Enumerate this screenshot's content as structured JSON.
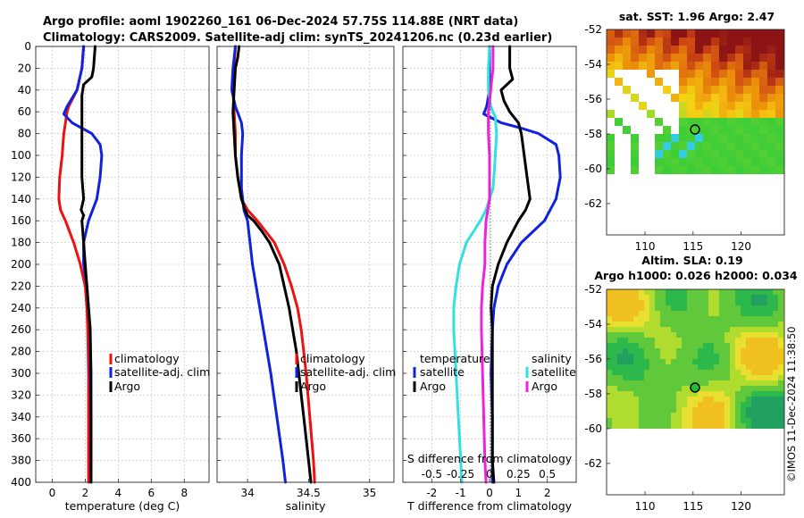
{
  "title_line1": "Argo profile: aoml 1902260_161 06-Dec-2024 57.75S 114.88E (NRT data)",
  "title_line2": "Climatology: CARS2009. Satellite-adj clim: synTS_20241206.nc (0.23d earlier)",
  "colors": {
    "climatology": "#ee1111",
    "satellite": "#1122dd",
    "argo": "#000000",
    "salinity_sat": "#33e0e0",
    "salinity_argo": "#ee22dd"
  },
  "depth_ticks": [
    "0",
    "20",
    "40",
    "60",
    "80",
    "100",
    "120",
    "140",
    "160",
    "180",
    "200",
    "220",
    "240",
    "260",
    "280",
    "300",
    "320",
    "340",
    "360",
    "380",
    "400"
  ],
  "copyright": "©IMOS 11-Dec-2024 11:38:50",
  "chart_data": [
    {
      "type": "line",
      "name": "temperature",
      "xlabel": "temperature (deg C)",
      "ylabel": "depth",
      "xlim": [
        -1,
        9.5
      ],
      "ylim": [
        400,
        0
      ],
      "x_ticks": [
        "0",
        "2",
        "4",
        "6",
        "8"
      ],
      "legend": [
        "climatology",
        "satellite-adj. clim",
        "Argo"
      ],
      "series": [
        {
          "name": "climatology",
          "depth": [
            0,
            20,
            40,
            55,
            60,
            70,
            80,
            100,
            120,
            140,
            150,
            160,
            180,
            200,
            220,
            240,
            260,
            300,
            340,
            380,
            400
          ],
          "values": [
            1.9,
            1.8,
            1.5,
            1.0,
            0.9,
            0.8,
            0.7,
            0.6,
            0.45,
            0.4,
            0.5,
            0.8,
            1.3,
            1.7,
            2.0,
            2.1,
            2.15,
            2.2,
            2.2,
            2.2,
            2.2
          ]
        },
        {
          "name": "satellite-adj. clim",
          "depth": [
            0,
            20,
            40,
            55,
            62,
            70,
            75,
            80,
            90,
            100,
            120,
            140,
            160,
            180,
            200,
            220,
            240,
            260,
            300,
            340,
            380,
            400
          ],
          "values": [
            1.9,
            1.8,
            1.5,
            0.9,
            0.7,
            1.2,
            1.8,
            2.4,
            2.9,
            3.0,
            2.9,
            2.7,
            2.2,
            1.9,
            1.9,
            2.1,
            2.2,
            2.3,
            2.3,
            2.35,
            2.35,
            2.35
          ]
        },
        {
          "name": "Argo",
          "depth": [
            0,
            20,
            28,
            35,
            45,
            60,
            80,
            100,
            120,
            140,
            150,
            155,
            160,
            180,
            200,
            220,
            240,
            260,
            300,
            340,
            380,
            400
          ],
          "values": [
            2.6,
            2.5,
            2.4,
            1.9,
            1.8,
            1.8,
            1.8,
            1.8,
            1.8,
            1.9,
            1.75,
            1.9,
            1.8,
            1.9,
            2.0,
            2.1,
            2.2,
            2.3,
            2.35,
            2.35,
            2.35,
            2.35
          ]
        }
      ]
    },
    {
      "type": "line",
      "name": "salinity",
      "xlabel": "salinity",
      "ylabel": "depth",
      "xlim": [
        33.75,
        35.2
      ],
      "ylim": [
        400,
        0
      ],
      "x_ticks": [
        "34",
        "34.5",
        "35"
      ],
      "legend": [
        "climatology",
        "satellite-adj. clim",
        "Argo"
      ],
      "series": [
        {
          "name": "climatology",
          "depth": [
            0,
            20,
            40,
            60,
            80,
            100,
            120,
            140,
            150,
            160,
            180,
            200,
            220,
            240,
            260,
            280,
            300,
            340,
            380,
            400
          ],
          "values": [
            33.9,
            33.89,
            33.88,
            33.89,
            33.9,
            33.9,
            33.92,
            33.95,
            34.0,
            34.08,
            34.22,
            34.3,
            34.36,
            34.41,
            34.44,
            34.46,
            34.48,
            34.51,
            34.54,
            34.55
          ]
        },
        {
          "name": "satellite-adj. clim",
          "depth": [
            0,
            20,
            40,
            55,
            70,
            80,
            100,
            130,
            150,
            160,
            180,
            200,
            220,
            240,
            260,
            280,
            300,
            340,
            380,
            400
          ],
          "values": [
            33.9,
            33.88,
            33.87,
            33.9,
            33.95,
            33.96,
            33.95,
            33.95,
            33.97,
            34.0,
            34.02,
            34.04,
            34.07,
            34.1,
            34.13,
            34.16,
            34.19,
            34.24,
            34.29,
            34.31
          ]
        },
        {
          "name": "Argo",
          "depth": [
            0,
            10,
            20,
            40,
            60,
            80,
            100,
            120,
            140,
            150,
            155,
            160,
            170,
            180,
            200,
            220,
            240,
            260,
            280,
            300,
            320,
            340,
            380,
            400
          ],
          "values": [
            33.93,
            33.92,
            33.9,
            33.89,
            33.88,
            33.89,
            33.9,
            33.92,
            33.95,
            33.98,
            34.0,
            34.05,
            34.12,
            34.18,
            34.26,
            34.3,
            34.34,
            34.37,
            34.4,
            34.42,
            34.44,
            34.46,
            34.5,
            34.52
          ]
        }
      ]
    },
    {
      "type": "line",
      "name": "difference from climatology",
      "xlabel": "T difference from climatology",
      "xlabel_top": "S difference from climatology",
      "ylabel": "depth",
      "xlim": [
        -3,
        3
      ],
      "ylim": [
        400,
        0
      ],
      "x_ticks": [
        "-2",
        "-1",
        "0",
        "1",
        "2"
      ],
      "s_ticks": [
        "-0.5",
        "-0.25",
        "0",
        "0.25",
        "0.5"
      ],
      "legend_temperature_title": "temperature",
      "legend_salinity_title": "salinity",
      "legend_temperature": [
        "satellite",
        "Argo"
      ],
      "legend_salinity": [
        "satellite",
        "Argo"
      ],
      "series": [
        {
          "name": "temperature satellite",
          "depth": [
            0,
            20,
            40,
            55,
            62,
            70,
            75,
            80,
            90,
            100,
            120,
            140,
            160,
            180,
            200,
            220,
            240,
            260,
            300,
            340,
            380,
            400
          ],
          "values": [
            0.0,
            0.0,
            0.0,
            -0.1,
            -0.2,
            0.4,
            1.1,
            1.7,
            2.3,
            2.4,
            2.45,
            2.3,
            1.9,
            1.1,
            0.6,
            0.3,
            0.15,
            0.1,
            0.05,
            0.1,
            0.1,
            0.1
          ]
        },
        {
          "name": "temperature Argo",
          "depth": [
            0,
            20,
            30,
            40,
            50,
            60,
            70,
            80,
            100,
            120,
            140,
            150,
            160,
            180,
            200,
            220,
            240,
            260,
            300,
            340,
            380,
            400
          ],
          "values": [
            0.7,
            0.7,
            0.8,
            0.4,
            0.5,
            0.7,
            1.0,
            1.1,
            1.2,
            1.3,
            1.4,
            1.25,
            1.0,
            0.6,
            0.3,
            0.1,
            0.05,
            0.1,
            0.1,
            0.1,
            0.1,
            0.15
          ]
        },
        {
          "name": "salinity satellite",
          "depth": [
            0,
            20,
            40,
            55,
            65,
            80,
            100,
            130,
            150,
            160,
            180,
            200,
            220,
            240,
            260,
            280,
            300,
            340,
            380,
            400
          ],
          "values": [
            0.0,
            -0.01,
            -0.01,
            0.01,
            0.05,
            0.06,
            0.05,
            0.03,
            -0.03,
            -0.08,
            -0.2,
            -0.26,
            -0.29,
            -0.31,
            -0.31,
            -0.3,
            -0.29,
            -0.27,
            -0.25,
            -0.24
          ]
        },
        {
          "name": "salinity Argo",
          "depth": [
            0,
            20,
            40,
            60,
            80,
            100,
            120,
            140,
            160,
            180,
            200,
            220,
            240,
            260,
            300,
            340,
            380,
            400
          ],
          "values": [
            0.03,
            0.03,
            0.01,
            -0.01,
            -0.01,
            0.0,
            0.0,
            0.0,
            -0.03,
            -0.04,
            -0.04,
            -0.06,
            -0.07,
            -0.07,
            -0.06,
            -0.05,
            -0.04,
            -0.03
          ]
        }
      ]
    },
    {
      "type": "heatmap",
      "name": "sat. SST map",
      "title": "sat. SST: 1.96 Argo: 2.47",
      "xlim": [
        106,
        124.5
      ],
      "ylim": [
        -63.8,
        -52
      ],
      "x_ticks": [
        "110",
        "115",
        "120"
      ],
      "y_ticks": [
        "-52",
        "-54",
        "-56",
        "-58",
        "-60",
        "-62"
      ],
      "marker": {
        "lon": 114.88,
        "lat": -57.75
      }
    },
    {
      "type": "heatmap",
      "name": "altimetry SLA map",
      "title": "Altim. SLA: 0.19",
      "subtitle": "Argo h1000: 0.026 h2000: 0.034",
      "xlim": [
        106,
        124.5
      ],
      "ylim": [
        -63.8,
        -52
      ],
      "x_ticks": [
        "110",
        "115",
        "120"
      ],
      "y_ticks": [
        "-52",
        "-54",
        "-56",
        "-58",
        "-60",
        "-62"
      ],
      "marker": {
        "lon": 114.88,
        "lat": -57.75
      }
    }
  ]
}
